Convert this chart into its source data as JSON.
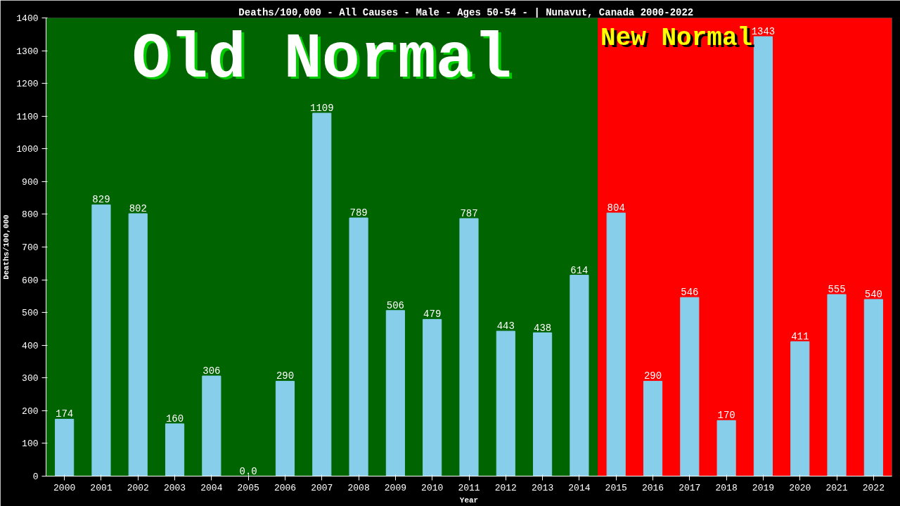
{
  "chart_data": {
    "type": "bar",
    "title": "Deaths/100,000 - All Causes - Male - Ages 50-54 -  | Nunavut, Canada 2000-2022",
    "xlabel": "Year",
    "ylabel": "Deaths/100,000",
    "x": [
      2000,
      2001,
      2002,
      2003,
      2004,
      2005,
      2006,
      2007,
      2008,
      2009,
      2010,
      2011,
      2012,
      2013,
      2014,
      2015,
      2016,
      2017,
      2018,
      2019,
      2020,
      2021,
      2022
    ],
    "values": [
      174,
      829,
      802,
      160,
      306,
      0,
      290,
      1109,
      789,
      506,
      479,
      787,
      443,
      438,
      614,
      804,
      290,
      546,
      170,
      1343,
      411,
      555,
      540
    ],
    "value_labels": [
      "174",
      "829",
      "802",
      "160",
      "306",
      "0.0",
      "290",
      "1109",
      "789",
      "506",
      "479",
      "787",
      "443",
      "438",
      "614",
      "804",
      "290",
      "546",
      "170",
      "1343",
      "411",
      "555",
      "540"
    ],
    "color": "#87ceeb",
    "xlim": [
      1999.5,
      2022.5
    ],
    "xticks": [
      2000,
      2001,
      2002,
      2003,
      2004,
      2005,
      2006,
      2007,
      2008,
      2009,
      2010,
      2011,
      2012,
      2013,
      2014,
      2015,
      2016,
      2017,
      2018,
      2019,
      2020,
      2021,
      2022
    ],
    "ylim": [
      0,
      1400
    ],
    "yticks": [
      0,
      100,
      200,
      300,
      400,
      500,
      600,
      700,
      800,
      900,
      1000,
      1100,
      1200,
      1300,
      1400
    ],
    "grid": false,
    "bands": [
      {
        "axis": "x",
        "from": 1999.5,
        "to": 2014.5,
        "label": "Old Normal",
        "color": "#006400"
      },
      {
        "axis": "x",
        "from": 2014.5,
        "to": 2022.5,
        "label": "New Normal",
        "color": "#ff0000"
      }
    ]
  }
}
